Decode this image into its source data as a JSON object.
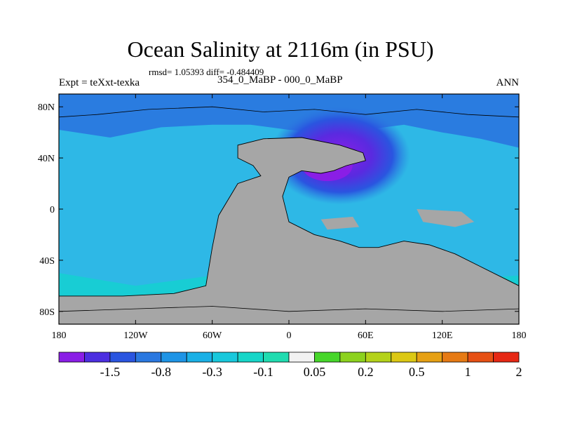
{
  "chart_data": {
    "type": "heatmap",
    "title": "Ocean Salinity at 2116m (in PSU)",
    "stats": "rmsd= 1.05393 diff= -0.484409",
    "left_label": "Expt = teXxt-texka",
    "subtitle": "354_0_MaBP - 000_0_MaBP",
    "right_label": "ANN",
    "x_ticks": [
      "180",
      "120W",
      "60W",
      "0",
      "60E",
      "120E",
      "180"
    ],
    "y_ticks": [
      "80N",
      "40N",
      "0",
      "40S",
      "80S"
    ],
    "x_range": [
      -180,
      180
    ],
    "y_range": [
      -90,
      90
    ],
    "colorbar": {
      "colors": [
        "#8a1ee6",
        "#4c2ee0",
        "#2a55e0",
        "#2a78e0",
        "#1e94e6",
        "#1ab0e6",
        "#18c8dc",
        "#16d6c8",
        "#20dcb0",
        "#f2f2f2",
        "#46d62a",
        "#8cd21e",
        "#b4d21a",
        "#dcc814",
        "#e6a014",
        "#e67a14",
        "#e65014",
        "#e62814"
      ],
      "labels": [
        "-1.5",
        "-0.8",
        "-0.3",
        "-0.1",
        "0.05",
        "0.2",
        "0.5",
        "1",
        "2"
      ]
    },
    "fields": {
      "ocean_background": "#2eb8e6",
      "polar_south": "#18cdd4",
      "arctic": "#2a7ce0",
      "anomaly_core": "#8a1ee6",
      "land": "#a6a6a6"
    }
  }
}
